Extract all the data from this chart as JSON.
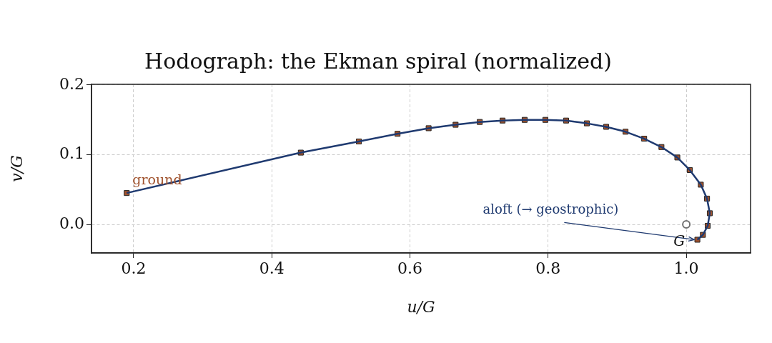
{
  "chart_data": {
    "type": "line",
    "title": "Hodograph: the Ekman spiral (normalized)",
    "xlabel": "u/G",
    "ylabel": "v/G",
    "xlim": [
      0.139,
      1.093
    ],
    "ylim": [
      -0.041,
      0.201
    ],
    "xticks": [
      0.2,
      0.4,
      0.6,
      0.8,
      {
        "value": 1,
        "label": "1.0"
      }
    ],
    "yticks": [
      {
        "value": 0,
        "label": "0.0"
      },
      0.1,
      0.2
    ],
    "grid": true,
    "legend": false,
    "series": [
      {
        "type": "line",
        "color": "#1f3a70",
        "marker": "none",
        "line_style": "solid",
        "x": [
          0.19,
          0.442,
          0.526,
          0.582,
          0.627,
          0.666,
          0.701,
          0.734,
          0.766,
          0.796,
          0.826,
          0.856,
          0.884,
          0.912,
          0.939,
          0.964,
          0.987,
          1.005,
          1.021,
          1.03,
          1.034,
          1.031,
          1.024,
          1.016
        ],
        "values": [
          0.045,
          0.103,
          0.119,
          0.13,
          0.138,
          0.143,
          0.147,
          0.149,
          0.15,
          0.15,
          0.149,
          0.145,
          0.14,
          0.133,
          0.123,
          0.111,
          0.096,
          0.078,
          0.057,
          0.037,
          0.016,
          -0.002,
          -0.015,
          -0.022
        ]
      },
      {
        "type": "scatter",
        "color": "#a0522d",
        "marker": "square",
        "x": [
          0.19,
          0.442,
          0.526,
          0.582,
          0.627,
          0.666,
          0.701,
          0.734,
          0.766,
          0.796,
          0.826,
          0.856,
          0.884,
          0.912,
          0.939,
          0.964,
          0.987,
          1.005,
          1.021,
          1.03,
          1.034,
          1.031,
          1.024,
          1.016
        ],
        "values": [
          0.045,
          0.103,
          0.119,
          0.13,
          0.138,
          0.143,
          0.147,
          0.149,
          0.15,
          0.15,
          0.149,
          0.145,
          0.14,
          0.133,
          0.123,
          0.111,
          0.096,
          0.078,
          0.057,
          0.037,
          0.016,
          -0.002,
          -0.015,
          -0.022
        ]
      },
      {
        "type": "scatter",
        "color": "#707070",
        "marker": "circle",
        "x": [
          1.0
        ],
        "values": [
          0.0
        ]
      }
    ],
    "annotations": [
      {
        "text": "ground",
        "x": 0.19,
        "y": 0.045
      },
      {
        "text": "aloft (→ geostrophic)",
        "x": 1.016,
        "y": -0.022
      },
      {
        "text": "G",
        "x": 1.0,
        "y": 0.0
      }
    ]
  }
}
